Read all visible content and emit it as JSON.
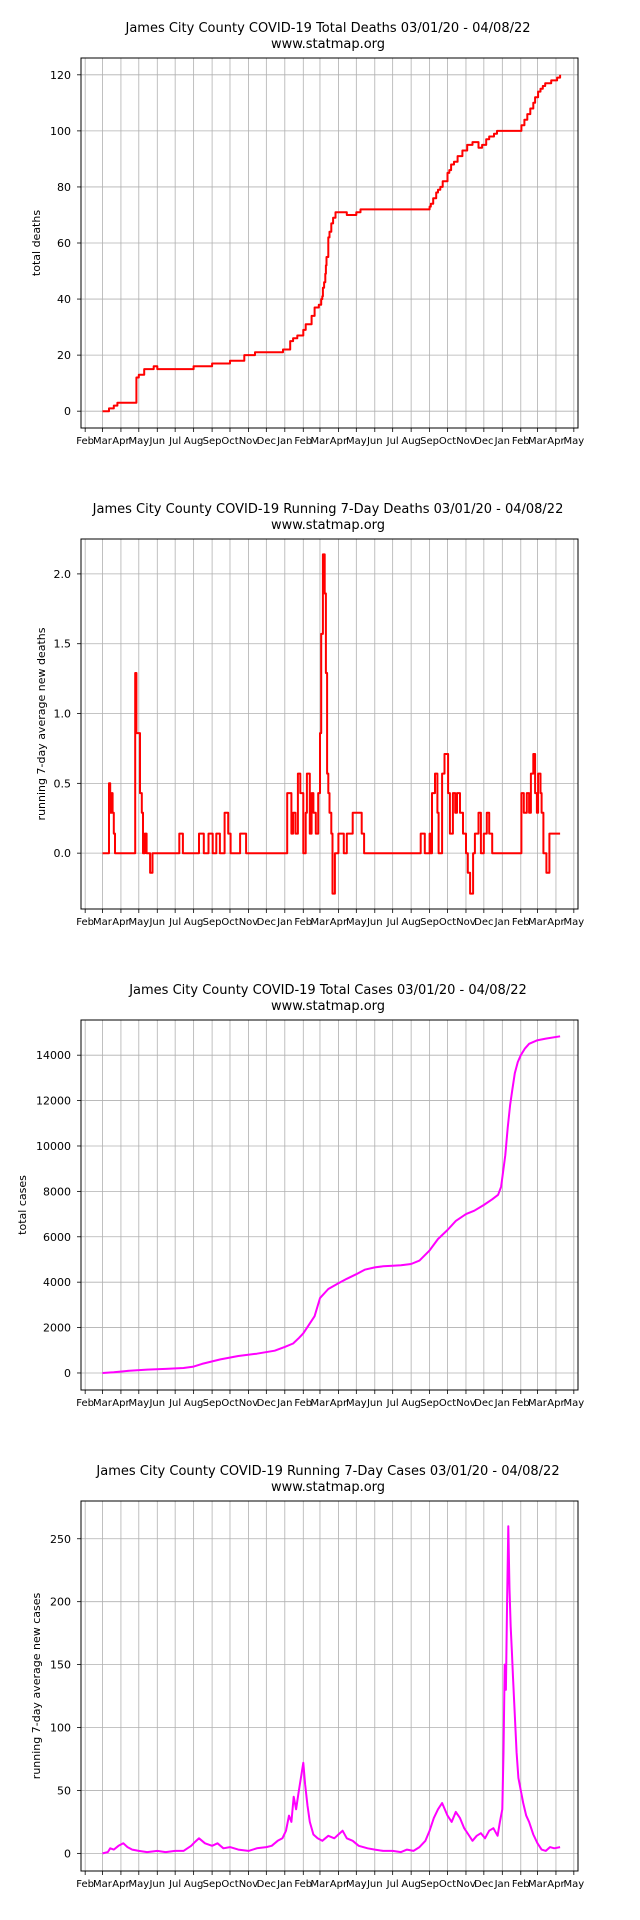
{
  "chart_data": [
    {
      "type": "line",
      "title": "James City County COVID-19 Total Deaths 03/01/20 - 04/08/22",
      "subtitle": "www.statmap.org",
      "ylabel": "total deaths",
      "xlabel": "",
      "x_tick_labels": [
        "Feb",
        "Mar",
        "Apr",
        "May",
        "Jun",
        "Jul",
        "Aug",
        "Sep",
        "Oct",
        "Nov",
        "Dec",
        "Jan",
        "Feb",
        "Mar",
        "Apr",
        "May",
        "Jun",
        "Jul",
        "Aug",
        "Sep",
        "Oct",
        "Nov",
        "Dec",
        "Jan",
        "Feb",
        "Mar",
        "Apr",
        "May"
      ],
      "yticks": [
        0,
        20,
        40,
        60,
        80,
        100,
        120
      ],
      "ylim": [
        -6,
        126
      ],
      "grid": true,
      "color": "#ff0000",
      "style": "step",
      "series": [
        {
          "x": [
            "2020-03-01",
            "2020-03-12",
            "2020-03-20",
            "2020-03-26",
            "2020-04-02",
            "2020-04-27",
            "2020-05-01",
            "2020-05-10",
            "2020-05-16",
            "2020-05-26",
            "2020-06-01",
            "2020-06-05",
            "2020-07-01",
            "2020-07-10",
            "2020-08-01",
            "2020-08-20",
            "2020-09-01",
            "2020-09-20",
            "2020-10-01",
            "2020-10-10",
            "2020-10-25",
            "2020-11-12",
            "2020-12-29",
            "2021-01-03",
            "2021-01-10",
            "2021-01-15",
            "2021-01-22",
            "2021-02-01",
            "2021-02-05",
            "2021-02-10",
            "2021-02-15",
            "2021-02-20",
            "2021-02-27",
            "2021-03-03",
            "2021-03-05",
            "2021-03-06",
            "2021-03-08",
            "2021-03-10",
            "2021-03-11",
            "2021-03-12",
            "2021-03-15",
            "2021-03-17",
            "2021-03-20",
            "2021-03-23",
            "2021-03-27",
            "2021-04-15",
            "2021-05-01",
            "2021-05-08",
            "2021-08-15",
            "2021-08-26",
            "2021-09-01",
            "2021-09-03",
            "2021-09-07",
            "2021-09-12",
            "2021-09-15",
            "2021-09-19",
            "2021-09-23",
            "2021-10-01",
            "2021-10-04",
            "2021-10-07",
            "2021-10-12",
            "2021-10-18",
            "2021-10-26",
            "2021-11-03",
            "2021-11-12",
            "2021-11-22",
            "2021-11-28",
            "2021-12-05",
            "2021-12-10",
            "2021-12-18",
            "2021-12-23",
            "2022-01-30",
            "2022-02-02",
            "2022-02-07",
            "2022-02-12",
            "2022-02-17",
            "2022-02-22",
            "2022-02-25",
            "2022-03-02",
            "2022-03-06",
            "2022-03-10",
            "2022-03-14",
            "2022-03-19",
            "2022-03-24",
            "2022-03-30",
            "2022-04-03",
            "2022-04-08"
          ],
          "values": [
            0,
            1,
            2,
            3,
            3,
            12,
            13,
            15,
            15,
            16,
            15,
            15,
            15,
            15,
            16,
            16,
            17,
            17,
            18,
            18,
            20,
            21,
            22,
            22,
            25,
            26,
            27,
            29,
            31,
            31,
            34,
            37,
            38,
            40,
            41,
            44,
            46,
            49,
            52,
            55,
            62,
            64,
            67,
            69,
            71,
            70,
            71,
            72,
            72,
            72,
            73,
            74,
            76,
            78,
            79,
            80,
            82,
            85,
            86,
            88,
            89,
            91,
            93,
            95,
            96,
            94,
            95,
            97,
            98,
            99,
            100,
            100,
            102,
            104,
            106,
            108,
            110,
            112,
            114,
            115,
            116,
            117,
            117,
            118,
            118,
            119,
            120
          ]
        }
      ]
    },
    {
      "type": "line",
      "title": "James City County COVID-19 Running 7-Day Deaths 03/01/20 - 04/08/22",
      "subtitle": "www.statmap.org",
      "ylabel": "running 7-day average new deaths",
      "xlabel": "",
      "x_tick_labels": [
        "Feb",
        "Mar",
        "Apr",
        "May",
        "Jun",
        "Jul",
        "Aug",
        "Sep",
        "Oct",
        "Nov",
        "Dec",
        "Jan",
        "Feb",
        "Mar",
        "Apr",
        "May",
        "Jun",
        "Jul",
        "Aug",
        "Sep",
        "Oct",
        "Nov",
        "Dec",
        "Jan",
        "Feb",
        "Mar",
        "Apr",
        "May"
      ],
      "yticks": [
        0.0,
        0.5,
        1.0,
        1.5,
        2.0
      ],
      "ylim": [
        -0.4,
        2.25
      ],
      "grid": true,
      "color": "#ff0000",
      "style": "step",
      "series": [
        {
          "x": [
            "2020-03-01",
            "2020-03-12",
            "2020-03-14",
            "2020-03-16",
            "2020-03-18",
            "2020-03-20",
            "2020-03-22",
            "2020-03-25",
            "2020-03-28",
            "2020-04-25",
            "2020-04-27",
            "2020-05-03",
            "2020-05-06",
            "2020-05-08",
            "2020-05-11",
            "2020-05-14",
            "2020-05-20",
            "2020-05-24",
            "2020-06-01",
            "2020-06-08",
            "2020-06-16",
            "2020-07-08",
            "2020-07-14",
            "2020-08-10",
            "2020-08-18",
            "2020-08-26",
            "2020-09-02",
            "2020-09-08",
            "2020-09-14",
            "2020-09-22",
            "2020-09-28",
            "2020-10-02",
            "2020-10-06",
            "2020-10-18",
            "2020-10-28",
            "2020-11-01",
            "2021-01-05",
            "2021-01-12",
            "2021-01-15",
            "2021-01-19",
            "2021-01-23",
            "2021-01-27",
            "2021-02-01",
            "2021-02-05",
            "2021-02-07",
            "2021-02-12",
            "2021-02-15",
            "2021-02-18",
            "2021-02-22",
            "2021-02-26",
            "2021-03-01",
            "2021-03-03",
            "2021-03-06",
            "2021-03-09",
            "2021-03-11",
            "2021-03-13",
            "2021-03-15",
            "2021-03-17",
            "2021-03-20",
            "2021-03-22",
            "2021-03-26",
            "2021-03-30",
            "2021-04-01",
            "2021-04-10",
            "2021-04-15",
            "2021-04-25",
            "2021-05-10",
            "2021-05-14",
            "2021-08-17",
            "2021-08-24",
            "2021-08-28",
            "2021-09-01",
            "2021-09-03",
            "2021-09-05",
            "2021-09-10",
            "2021-09-14",
            "2021-09-16",
            "2021-09-22",
            "2021-09-26",
            "2021-10-02",
            "2021-10-05",
            "2021-10-10",
            "2021-10-14",
            "2021-10-17",
            "2021-10-22",
            "2021-10-27",
            "2021-11-01",
            "2021-11-04",
            "2021-11-08",
            "2021-11-13",
            "2021-11-16",
            "2021-11-22",
            "2021-11-26",
            "2021-12-01",
            "2021-12-06",
            "2021-12-10",
            "2021-12-15",
            "2021-12-18",
            "2022-02-02",
            "2022-02-06",
            "2022-02-11",
            "2022-02-15",
            "2022-02-18",
            "2022-02-22",
            "2022-02-25",
            "2022-02-28",
            "2022-03-02",
            "2022-03-06",
            "2022-03-08",
            "2022-03-11",
            "2022-03-16",
            "2022-03-21",
            "2022-03-24",
            "2022-03-27",
            "2022-04-08"
          ],
          "values": [
            0,
            0.5,
            0.29,
            0.43,
            0.29,
            0.14,
            0,
            0,
            0,
            1.29,
            0.86,
            0.43,
            0.29,
            0,
            0.14,
            0,
            -0.14,
            0,
            0,
            0,
            0,
            0.14,
            0,
            0.14,
            0,
            0.14,
            0,
            0.14,
            0,
            0.29,
            0.14,
            0,
            0,
            0.14,
            0,
            0,
            0.43,
            0.14,
            0.29,
            0.14,
            0.57,
            0.43,
            0,
            0.29,
            0.57,
            0.14,
            0.43,
            0.29,
            0.14,
            0.43,
            0.86,
            1.57,
            2.14,
            1.86,
            1.29,
            0.57,
            0.43,
            0.29,
            0.14,
            -0.29,
            0,
            0,
            0.14,
            0,
            0.14,
            0.29,
            0.14,
            0,
            0.14,
            0,
            0,
            0.14,
            0,
            0.43,
            0.57,
            0.29,
            0,
            0.57,
            0.71,
            0.43,
            0.14,
            0.43,
            0.29,
            0.43,
            0.29,
            0.14,
            0,
            -0.14,
            -0.29,
            0,
            0.14,
            0.29,
            0,
            0.14,
            0.29,
            0.14,
            0,
            0,
            0.43,
            0.29,
            0.43,
            0.29,
            0.57,
            0.71,
            0.43,
            0.29,
            0.57,
            0.43,
            0.29,
            0,
            -0.14,
            0.14,
            0.14,
            0.14,
            0.14
          ]
        }
      ]
    },
    {
      "type": "line",
      "title": "James City County COVID-19 Total Cases 03/01/20 - 04/08/22",
      "subtitle": "www.statmap.org",
      "ylabel": "total cases",
      "xlabel": "",
      "x_tick_labels": [
        "Feb",
        "Mar",
        "Apr",
        "May",
        "Jun",
        "Jul",
        "Aug",
        "Sep",
        "Oct",
        "Nov",
        "Dec",
        "Jan",
        "Feb",
        "Mar",
        "Apr",
        "May",
        "Jun",
        "Jul",
        "Aug",
        "Sep",
        "Oct",
        "Nov",
        "Dec",
        "Jan",
        "Feb",
        "Mar",
        "Apr",
        "May"
      ],
      "yticks": [
        0,
        2000,
        4000,
        6000,
        8000,
        10000,
        12000,
        14000
      ],
      "ylim": [
        -750,
        15550
      ],
      "grid": true,
      "color": "#ff00ff",
      "style": "line",
      "series": [
        {
          "x": [
            "2020-03-01",
            "2020-03-20",
            "2020-04-15",
            "2020-05-15",
            "2020-06-15",
            "2020-07-15",
            "2020-08-01",
            "2020-08-15",
            "2020-09-15",
            "2020-10-15",
            "2020-11-15",
            "2020-12-15",
            "2021-01-01",
            "2021-01-15",
            "2021-01-25",
            "2021-02-01",
            "2021-02-10",
            "2021-02-20",
            "2021-03-01",
            "2021-03-15",
            "2021-04-01",
            "2021-04-15",
            "2021-05-01",
            "2021-05-15",
            "2021-06-01",
            "2021-06-15",
            "2021-07-01",
            "2021-07-15",
            "2021-08-01",
            "2021-08-15",
            "2021-09-01",
            "2021-09-15",
            "2021-10-01",
            "2021-10-15",
            "2021-11-01",
            "2021-11-15",
            "2021-12-01",
            "2021-12-15",
            "2021-12-25",
            "2021-12-30",
            "2022-01-03",
            "2022-01-06",
            "2022-01-10",
            "2022-01-14",
            "2022-01-18",
            "2022-01-22",
            "2022-01-27",
            "2022-02-01",
            "2022-02-08",
            "2022-02-15",
            "2022-02-28",
            "2022-03-15",
            "2022-04-08"
          ],
          "values": [
            0,
            30,
            100,
            150,
            180,
            220,
            280,
            400,
            600,
            750,
            850,
            980,
            1150,
            1300,
            1550,
            1750,
            2100,
            2500,
            3300,
            3700,
            3950,
            4150,
            4350,
            4550,
            4650,
            4700,
            4720,
            4750,
            4800,
            4950,
            5400,
            5900,
            6300,
            6700,
            7000,
            7150,
            7400,
            7650,
            7850,
            8200,
            9000,
            9600,
            10800,
            11800,
            12500,
            13200,
            13700,
            14000,
            14300,
            14500,
            14650,
            14730,
            14830
          ]
        }
      ]
    },
    {
      "type": "line",
      "title": "James City County COVID-19 Running 7-Day Cases 03/01/20 - 04/08/22",
      "subtitle": "www.statmap.org",
      "ylabel": "running 7-day average new cases",
      "xlabel": "",
      "x_tick_labels": [
        "Feb",
        "Mar",
        "Apr",
        "May",
        "Jun",
        "Jul",
        "Aug",
        "Sep",
        "Oct",
        "Nov",
        "Dec",
        "Jan",
        "Feb",
        "Mar",
        "Apr",
        "May",
        "Jun",
        "Jul",
        "Aug",
        "Sep",
        "Oct",
        "Nov",
        "Dec",
        "Jan",
        "Feb",
        "Mar",
        "Apr",
        "May"
      ],
      "yticks": [
        0,
        50,
        100,
        150,
        200,
        250
      ],
      "ylim": [
        -14,
        280
      ],
      "grid": true,
      "color": "#ff00ff",
      "style": "line",
      "series": [
        {
          "x": [
            "2020-03-01",
            "2020-03-10",
            "2020-03-14",
            "2020-03-20",
            "2020-03-28",
            "2020-04-05",
            "2020-04-12",
            "2020-04-20",
            "2020-05-01",
            "2020-05-15",
            "2020-06-01",
            "2020-06-15",
            "2020-07-01",
            "2020-07-15",
            "2020-07-28",
            "2020-08-03",
            "2020-08-10",
            "2020-08-20",
            "2020-09-01",
            "2020-09-10",
            "2020-09-20",
            "2020-10-01",
            "2020-10-15",
            "2020-11-01",
            "2020-11-15",
            "2020-12-01",
            "2020-12-10",
            "2020-12-20",
            "2020-12-28",
            "2021-01-03",
            "2021-01-08",
            "2021-01-12",
            "2021-01-16",
            "2021-01-20",
            "2021-01-24",
            "2021-01-28",
            "2021-02-01",
            "2021-02-04",
            "2021-02-08",
            "2021-02-12",
            "2021-02-18",
            "2021-02-25",
            "2021-03-05",
            "2021-03-15",
            "2021-03-25",
            "2021-04-01",
            "2021-04-08",
            "2021-04-15",
            "2021-04-25",
            "2021-05-05",
            "2021-05-20",
            "2021-06-01",
            "2021-06-15",
            "2021-07-01",
            "2021-07-15",
            "2021-07-25",
            "2021-08-05",
            "2021-08-15",
            "2021-08-25",
            "2021-09-01",
            "2021-09-08",
            "2021-09-15",
            "2021-09-22",
            "2021-10-01",
            "2021-10-08",
            "2021-10-15",
            "2021-10-22",
            "2021-10-29",
            "2021-11-05",
            "2021-11-12",
            "2021-11-19",
            "2021-11-26",
            "2021-12-03",
            "2021-12-10",
            "2021-12-17",
            "2021-12-24",
            "2021-12-28",
            "2022-01-01",
            "2022-01-03",
            "2022-01-05",
            "2022-01-07",
            "2022-01-09",
            "2022-01-11",
            "2022-01-13",
            "2022-01-15",
            "2022-01-17",
            "2022-01-19",
            "2022-01-21",
            "2022-01-23",
            "2022-01-25",
            "2022-01-28",
            "2022-02-01",
            "2022-02-05",
            "2022-02-10",
            "2022-02-15",
            "2022-02-22",
            "2022-03-01",
            "2022-03-08",
            "2022-03-15",
            "2022-03-22",
            "2022-03-29",
            "2022-04-08"
          ],
          "values": [
            0,
            1,
            4,
            3,
            6,
            8,
            5,
            3,
            2,
            1,
            2,
            1,
            2,
            2,
            6,
            9,
            12,
            8,
            6,
            8,
            4,
            5,
            3,
            2,
            4,
            5,
            6,
            10,
            12,
            18,
            30,
            25,
            45,
            35,
            48,
            60,
            72,
            55,
            38,
            25,
            15,
            12,
            10,
            14,
            12,
            15,
            18,
            12,
            10,
            6,
            4,
            3,
            2,
            2,
            1,
            3,
            2,
            5,
            10,
            18,
            28,
            35,
            40,
            30,
            25,
            33,
            28,
            20,
            15,
            10,
            14,
            16,
            12,
            18,
            20,
            14,
            25,
            35,
            80,
            150,
            130,
            200,
            260,
            210,
            180,
            160,
            140,
            120,
            100,
            80,
            60,
            50,
            40,
            30,
            25,
            15,
            8,
            3,
            2,
            5,
            4,
            5
          ]
        }
      ]
    }
  ]
}
